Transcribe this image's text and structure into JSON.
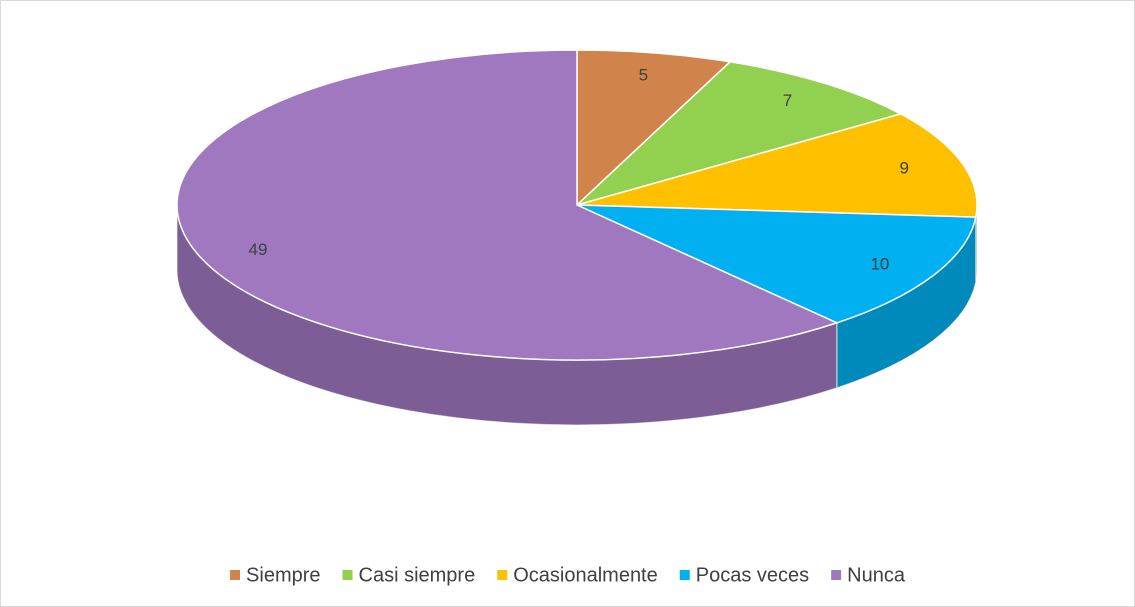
{
  "chart_data": {
    "type": "pie",
    "categories": [
      "Siempre",
      "Casi siempre",
      "Ocasionalmente",
      "Pocas veces",
      "Nunca"
    ],
    "values": [
      5,
      7,
      9,
      10,
      49
    ],
    "colors": [
      "#d0834b",
      "#92d050",
      "#ffc000",
      "#00b0f0",
      "#a078c0"
    ],
    "legend": "bottom"
  }
}
